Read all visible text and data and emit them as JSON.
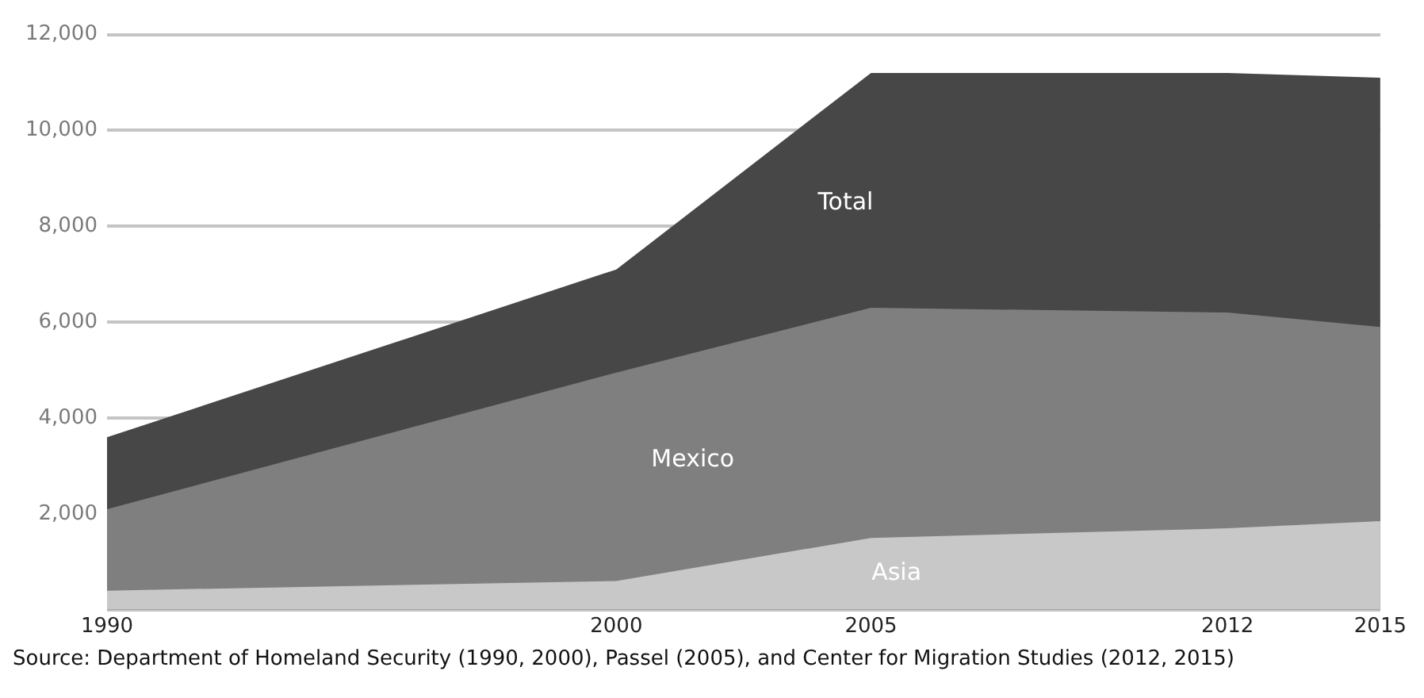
{
  "chart_data": {
    "type": "area",
    "x": [
      1990,
      2000,
      2005,
      2012,
      2015
    ],
    "series": [
      {
        "name": "Total",
        "color": "#474747",
        "values": [
          3600,
          7100,
          11200,
          11200,
          11100
        ]
      },
      {
        "name": "Mexico",
        "color": "#7f7f7f",
        "values": [
          2100,
          4950,
          6300,
          6200,
          5900
        ]
      },
      {
        "name": "Asia",
        "color": "#c8c8c8",
        "values": [
          400,
          600,
          1500,
          1700,
          1850
        ]
      }
    ],
    "xlim": [
      1990,
      2015
    ],
    "xticks": [
      1990,
      2000,
      2005,
      2012,
      2015
    ],
    "ylim": [
      0,
      12000
    ],
    "yticks": [
      {
        "value": 0,
        "label": null
      },
      {
        "value": 2000,
        "label": "2,000"
      },
      {
        "value": 4000,
        "label": "4,000"
      },
      {
        "value": 6000,
        "label": "6,000"
      },
      {
        "value": 8000,
        "label": "8,000"
      },
      {
        "value": 10000,
        "label": "10,000"
      },
      {
        "value": 12000,
        "label": "12,000"
      }
    ],
    "grid": "y",
    "legend": false,
    "annotations": [
      "Source: Department of Homeland Security (1990, 2000), Passel (2005), and Center for Migration Studies (2012, 2015)"
    ]
  }
}
